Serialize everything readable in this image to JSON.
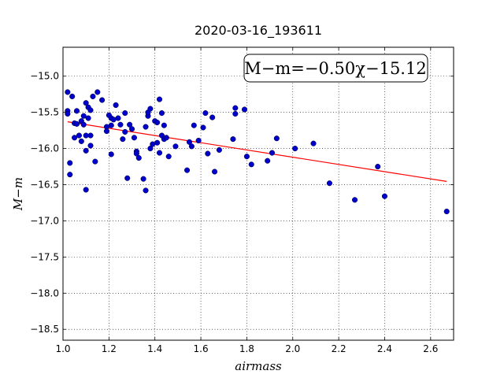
{
  "chart_data": {
    "type": "scatter",
    "title": "2020-03-16_193611",
    "xlabel": "airmass",
    "ylabel": "M−m",
    "xlim": [
      1.0,
      2.7
    ],
    "ylim": [
      -18.65,
      -14.6
    ],
    "xticks": [
      1.0,
      1.2,
      1.4,
      1.6,
      1.8,
      2.0,
      2.2,
      2.4,
      2.6
    ],
    "xtick_labels": [
      "1.0",
      "1.2",
      "1.4",
      "1.6",
      "1.8",
      "2.0",
      "2.2",
      "2.4",
      "2.6"
    ],
    "yticks": [
      -15.0,
      -15.5,
      -16.0,
      -16.5,
      -17.0,
      -17.5,
      -18.0,
      -18.5
    ],
    "ytick_labels": [
      "−15.0",
      "−15.5",
      "−16.0",
      "−16.5",
      "−17.0",
      "−17.5",
      "−18.0",
      "−18.5"
    ],
    "grid": true,
    "annotation": "M−m=−0.50χ−15.12",
    "series": [
      {
        "kind": "points",
        "color": "#0000cc",
        "points": [
          [
            1.02,
            -15.22
          ],
          [
            1.02,
            -15.48
          ],
          [
            1.02,
            -15.52
          ],
          [
            1.03,
            -16.2
          ],
          [
            1.03,
            -16.36
          ],
          [
            1.04,
            -15.28
          ],
          [
            1.05,
            -15.65
          ],
          [
            1.05,
            -15.85
          ],
          [
            1.06,
            -15.48
          ],
          [
            1.06,
            -15.66
          ],
          [
            1.07,
            -15.82
          ],
          [
            1.08,
            -15.9
          ],
          [
            1.08,
            -15.62
          ],
          [
            1.09,
            -15.55
          ],
          [
            1.09,
            -15.67
          ],
          [
            1.1,
            -15.37
          ],
          [
            1.1,
            -15.82
          ],
          [
            1.1,
            -16.03
          ],
          [
            1.1,
            -16.57
          ],
          [
            1.11,
            -15.58
          ],
          [
            1.11,
            -15.43
          ],
          [
            1.12,
            -15.47
          ],
          [
            1.12,
            -15.82
          ],
          [
            1.12,
            -15.96
          ],
          [
            1.13,
            -15.28
          ],
          [
            1.14,
            -16.18
          ],
          [
            1.15,
            -15.22
          ],
          [
            1.17,
            -15.33
          ],
          [
            1.19,
            -15.7
          ],
          [
            1.19,
            -15.76
          ],
          [
            1.2,
            -15.54
          ],
          [
            1.21,
            -15.58
          ],
          [
            1.21,
            -15.68
          ],
          [
            1.21,
            -16.08
          ],
          [
            1.22,
            -15.6
          ],
          [
            1.23,
            -15.4
          ],
          [
            1.24,
            -15.58
          ],
          [
            1.25,
            -15.67
          ],
          [
            1.26,
            -15.87
          ],
          [
            1.27,
            -15.51
          ],
          [
            1.27,
            -15.77
          ],
          [
            1.28,
            -16.41
          ],
          [
            1.29,
            -15.67
          ],
          [
            1.3,
            -15.73
          ],
          [
            1.31,
            -15.85
          ],
          [
            1.32,
            -16.04
          ],
          [
            1.32,
            -16.07
          ],
          [
            1.33,
            -16.13
          ],
          [
            1.35,
            -16.42
          ],
          [
            1.36,
            -16.58
          ],
          [
            1.36,
            -15.7
          ],
          [
            1.37,
            -15.55
          ],
          [
            1.37,
            -15.5
          ],
          [
            1.38,
            -15.45
          ],
          [
            1.38,
            -16.0
          ],
          [
            1.39,
            -15.94
          ],
          [
            1.4,
            -15.62
          ],
          [
            1.41,
            -15.64
          ],
          [
            1.41,
            -15.92
          ],
          [
            1.42,
            -15.32
          ],
          [
            1.42,
            -16.06
          ],
          [
            1.43,
            -15.82
          ],
          [
            1.43,
            -15.51
          ],
          [
            1.44,
            -15.87
          ],
          [
            1.44,
            -15.68
          ],
          [
            1.45,
            -15.85
          ],
          [
            1.46,
            -16.11
          ],
          [
            1.49,
            -15.97
          ],
          [
            1.54,
            -16.3
          ],
          [
            1.55,
            -15.91
          ],
          [
            1.56,
            -15.97
          ],
          [
            1.57,
            -15.68
          ],
          [
            1.59,
            -15.89
          ],
          [
            1.61,
            -15.71
          ],
          [
            1.62,
            -15.51
          ],
          [
            1.63,
            -16.07
          ],
          [
            1.65,
            -15.57
          ],
          [
            1.66,
            -16.32
          ],
          [
            1.68,
            -16.02
          ],
          [
            1.74,
            -15.87
          ],
          [
            1.75,
            -15.44
          ],
          [
            1.75,
            -15.52
          ],
          [
            1.79,
            -15.46
          ],
          [
            1.8,
            -16.11
          ],
          [
            1.82,
            -16.22
          ],
          [
            1.89,
            -16.17
          ],
          [
            1.91,
            -16.06
          ],
          [
            1.93,
            -15.86
          ],
          [
            2.01,
            -16.0
          ],
          [
            2.09,
            -15.93
          ],
          [
            2.16,
            -16.48
          ],
          [
            2.27,
            -16.71
          ],
          [
            2.37,
            -16.25
          ],
          [
            2.4,
            -16.66
          ],
          [
            2.67,
            -16.87
          ]
        ]
      },
      {
        "kind": "fit-line",
        "color": "#ff0000",
        "slope": -0.5,
        "intercept": -15.12
      }
    ]
  }
}
